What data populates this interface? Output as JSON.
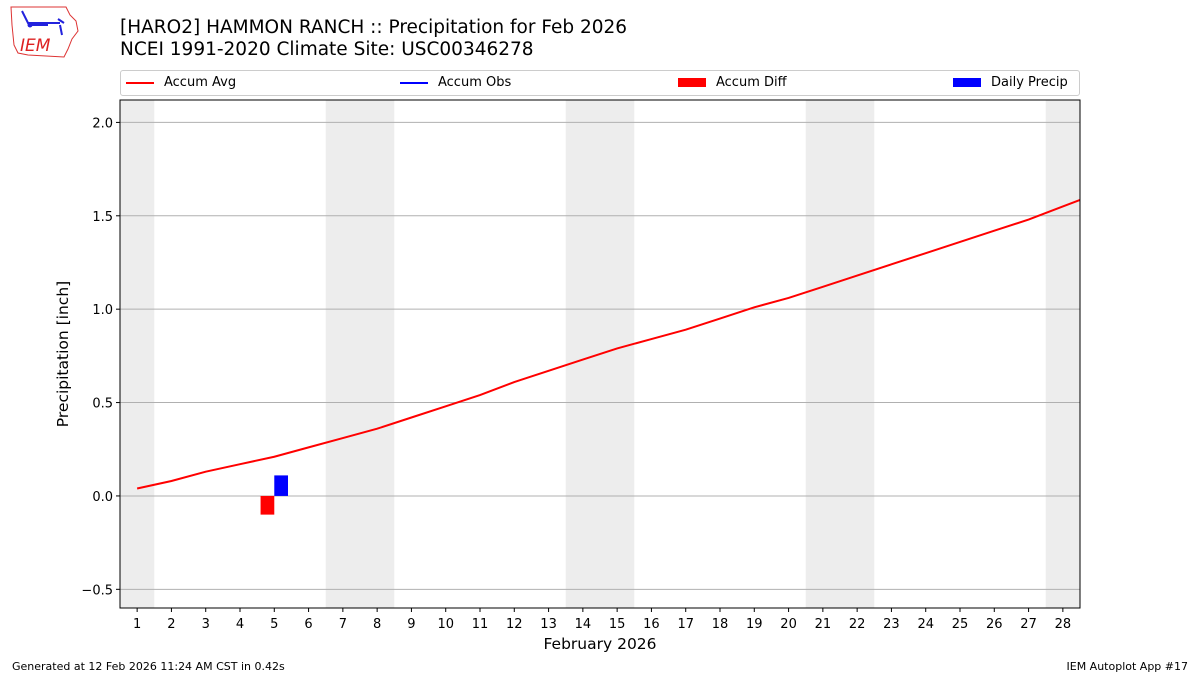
{
  "header": {
    "title_line1": "[HARO2] HAMMON RANCH :: Precipitation for Feb 2026",
    "title_line2": "NCEI 1991-2020 Climate Site: USC00346278",
    "logo_text": "IEM"
  },
  "footer": {
    "left": "Generated at 12 Feb 2026 11:24 AM CST in 0.42s",
    "right": "IEM Autoplot App #17"
  },
  "chart_data": {
    "type": "line",
    "xlabel": "February 2026",
    "ylabel": "Precipitation [inch]",
    "xlim": [
      0.5,
      28.5
    ],
    "ylim": [
      -0.6,
      2.12
    ],
    "yticks": [
      -0.5,
      0.0,
      0.5,
      1.0,
      1.5,
      2.0
    ],
    "ytick_labels": [
      "−0.5",
      "0.0",
      "0.5",
      "1.0",
      "1.5",
      "2.0"
    ],
    "xticks": [
      1,
      2,
      3,
      4,
      5,
      6,
      7,
      8,
      9,
      10,
      11,
      12,
      13,
      14,
      15,
      16,
      17,
      18,
      19,
      20,
      21,
      22,
      23,
      24,
      25,
      26,
      27,
      28
    ],
    "grid": "horizontal",
    "legend_placement": "top",
    "weekend_shading": [
      [
        0.5,
        1.5
      ],
      [
        6.5,
        8.5
      ],
      [
        13.5,
        15.5
      ],
      [
        20.5,
        22.5
      ],
      [
        27.5,
        28.5
      ]
    ],
    "series": [
      {
        "name": "Accum Avg",
        "kind": "line",
        "color": "#ff0000",
        "x": [
          1,
          2,
          3,
          4,
          5,
          6,
          7,
          8,
          9,
          10,
          11,
          12,
          13,
          14,
          15,
          16,
          17,
          18,
          19,
          20,
          21,
          22,
          23,
          24,
          25,
          26,
          27,
          28,
          29
        ],
        "values": [
          0.04,
          0.08,
          0.13,
          0.17,
          0.21,
          0.26,
          0.31,
          0.36,
          0.42,
          0.48,
          0.54,
          0.61,
          0.67,
          0.73,
          0.79,
          0.84,
          0.89,
          0.95,
          1.01,
          1.06,
          1.12,
          1.18,
          1.24,
          1.3,
          1.36,
          1.42,
          1.48,
          1.55,
          1.62
        ]
      },
      {
        "name": "Accum Obs",
        "kind": "line",
        "color": "#0000ff",
        "x": [],
        "values": []
      },
      {
        "name": "Accum Diff",
        "kind": "bar",
        "color": "#ff0000",
        "x": [
          5
        ],
        "values": [
          -0.1
        ]
      },
      {
        "name": "Daily Precip",
        "kind": "bar",
        "color": "#0000ff",
        "x": [
          5
        ],
        "values": [
          0.11
        ]
      }
    ]
  }
}
